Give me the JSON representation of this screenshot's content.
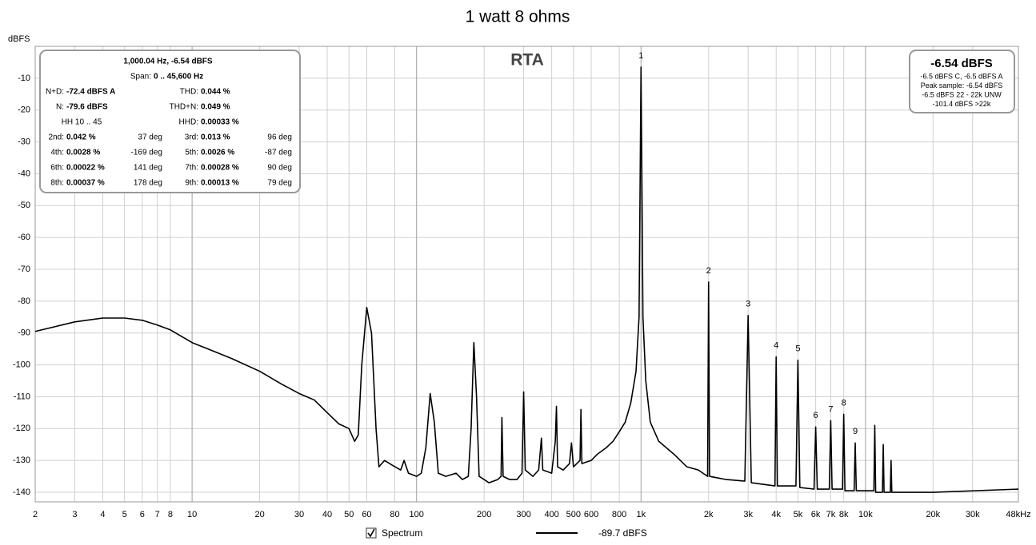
{
  "chart_data": {
    "type": "line",
    "title": "1 watt 8 ohms",
    "plot_label": "RTA",
    "ylabel": "dBFS",
    "xscale": "log",
    "grid": true,
    "xlim": [
      2,
      48000
    ],
    "ylim": [
      -143,
      0
    ],
    "xticks": [
      2,
      3,
      4,
      5,
      6,
      7,
      8,
      10,
      20,
      30,
      40,
      50,
      60,
      80,
      100,
      200,
      300,
      400,
      500,
      600,
      800,
      {
        "value": 1000,
        "label": "1k"
      },
      {
        "value": 2000,
        "label": "2k"
      },
      {
        "value": 3000,
        "label": "3k"
      },
      {
        "value": 4000,
        "label": "4k"
      },
      {
        "value": 5000,
        "label": "5k"
      },
      {
        "value": 6000,
        "label": "6k"
      },
      {
        "value": 7000,
        "label": "7k"
      },
      {
        "value": 8000,
        "label": "8k"
      },
      {
        "value": 10000,
        "label": "10k"
      },
      {
        "value": 20000,
        "label": "20k"
      },
      {
        "value": 30000,
        "label": "30k"
      },
      {
        "value": 48000,
        "label": "48kHz"
      }
    ],
    "yticks": [
      -10,
      -20,
      -30,
      -40,
      -50,
      -60,
      -70,
      -80,
      -90,
      -100,
      -110,
      -120,
      -130,
      -140
    ],
    "series": [
      {
        "name": "Spectrum",
        "color": "#000000",
        "legend_readout": "-89.7 dBFS",
        "x": [
          2,
          3,
          4,
          5,
          6,
          7,
          8,
          10,
          15,
          20,
          25,
          30,
          35,
          40,
          45,
          50,
          53,
          55,
          57,
          60,
          63,
          66,
          68,
          72,
          78,
          85,
          88,
          92,
          100,
          105,
          110,
          115,
          120,
          125,
          135,
          150,
          160,
          170,
          175,
          180,
          185,
          190,
          200,
          210,
          230,
          238,
          240,
          243,
          260,
          280,
          295,
          300,
          305,
          330,
          350,
          360,
          365,
          400,
          415,
          420,
          425,
          450,
          480,
          490,
          500,
          535,
          540,
          545,
          600,
          640,
          700,
          750,
          800,
          850,
          900,
          950,
          980,
          1000,
          1020,
          1050,
          1100,
          1200,
          1400,
          1600,
          1800,
          1980,
          2000,
          2020,
          2400,
          2900,
          3000,
          3100,
          3500,
          3950,
          4000,
          4050,
          4900,
          5000,
          5100,
          5900,
          6000,
          6100,
          6900,
          7000,
          7100,
          7900,
          8000,
          8100,
          8900,
          9000,
          9100,
          10900,
          11000,
          11100,
          11900,
          12000,
          12100,
          12900,
          13000,
          13100,
          20000,
          48000
        ],
        "values": [
          -89.5,
          -86.5,
          -85.3,
          -85.3,
          -86,
          -87.5,
          -89,
          -93,
          -98,
          -102,
          -106,
          -109,
          -111,
          -115,
          -118.5,
          -120,
          -124,
          -122,
          -100,
          -82,
          -90,
          -120,
          -132,
          -130,
          -131.5,
          -133,
          -130,
          -134,
          -135,
          -134,
          -126,
          -109,
          -118,
          -134,
          -135,
          -134,
          -136,
          -135,
          -120,
          -93,
          -110,
          -135,
          -136,
          -137,
          -136,
          -135,
          -116.5,
          -135,
          -136,
          -136,
          -134,
          -108.5,
          -133,
          -135,
          -133,
          -123,
          -133,
          -134,
          -124,
          -113,
          -132,
          -133,
          -131,
          -124.5,
          -132,
          -130,
          -114,
          -131,
          -130,
          -128,
          -126,
          -124,
          -121,
          -118,
          -112,
          -102,
          -85,
          -6.5,
          -85,
          -105,
          -118,
          -124,
          -128,
          -132,
          -133,
          -135,
          -74,
          -135,
          -136,
          -136.5,
          -84.5,
          -137,
          -137.5,
          -138,
          -97.5,
          -138,
          -138,
          -98.5,
          -138.5,
          -139,
          -119.5,
          -139,
          -139,
          -117.5,
          -139,
          -139,
          -115.5,
          -139.5,
          -139.5,
          -124.5,
          -139.5,
          -139.5,
          -119,
          -140,
          -140,
          -125,
          -140,
          -140,
          -130,
          -140,
          -140,
          -139
        ]
      }
    ],
    "harmonic_labels": [
      {
        "label": "1",
        "x": 1000,
        "y": -6.5
      },
      {
        "label": "2",
        "x": 2000,
        "y": -74
      },
      {
        "label": "3",
        "x": 3000,
        "y": -84.5
      },
      {
        "label": "4",
        "x": 4000,
        "y": -97.5
      },
      {
        "label": "5",
        "x": 5000,
        "y": -98.5
      },
      {
        "label": "6",
        "x": 6000,
        "y": -119.5
      },
      {
        "label": "7",
        "x": 7000,
        "y": -117.5
      },
      {
        "label": "8",
        "x": 8000,
        "y": -115.5
      },
      {
        "label": "9",
        "x": 9000,
        "y": -124.5
      }
    ]
  },
  "info_panel": {
    "title": "1,000.04 Hz, -6.54 dBFS",
    "span": [
      "Span:",
      "0 .. 45,600 Hz"
    ],
    "stats": [
      [
        "N+D:",
        "-72.4 dBFS A",
        "THD:",
        "0.044 %"
      ],
      [
        "N:",
        "-79.6 dBFS",
        "THD+N:",
        "0.049 %"
      ]
    ],
    "hh": [
      "HH 10 .. 45",
      "HHD:",
      "0.00033 %"
    ],
    "harmonics": [
      [
        "2nd:",
        "0.042 %",
        "37 deg",
        "3rd:",
        "0.013 %",
        "96 deg"
      ],
      [
        "4th:",
        "0.0028 %",
        "-169 deg",
        "5th:",
        "0.0026 %",
        "-87 deg"
      ],
      [
        "6th:",
        "0.00022 %",
        "141 deg",
        "7th:",
        "0.00028 %",
        "90 deg"
      ],
      [
        "8th:",
        "0.00037 %",
        "178 deg",
        "9th:",
        "0.00013 %",
        "79 deg"
      ]
    ]
  },
  "level_panel": {
    "level": "-6.54 dBFS",
    "lines": [
      "-6.5 dBFS C, -6.5 dBFS A",
      "Peak sample: -6.54 dBFS",
      "-6.5 dBFS 22 - 22k UNW",
      "-101.4 dBFS >22k"
    ]
  }
}
